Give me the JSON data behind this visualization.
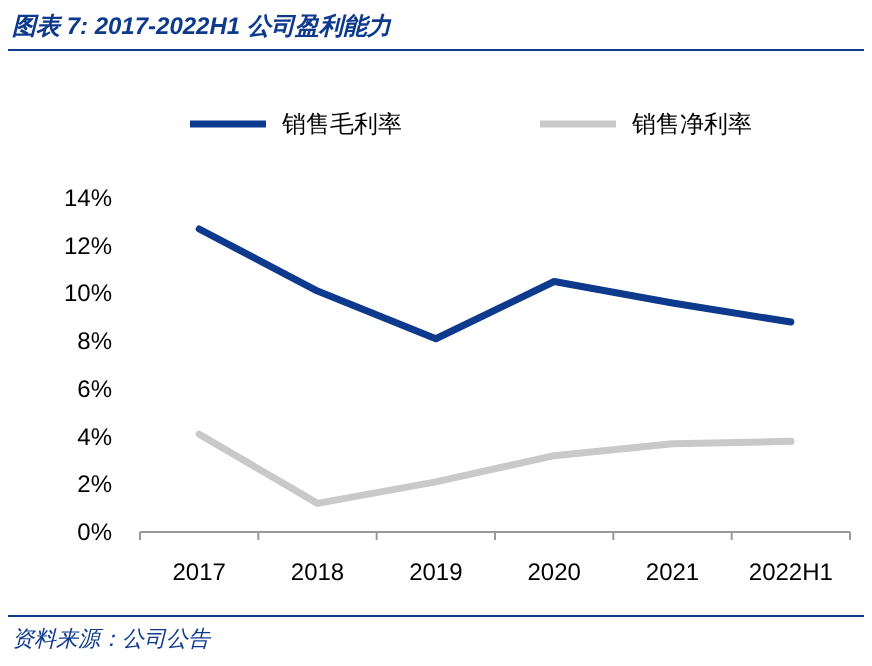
{
  "chart_data": {
    "type": "line",
    "title": "图表 7: 2017-2022H1 公司盈利能力",
    "categories": [
      "2017",
      "2018",
      "2019",
      "2020",
      "2021",
      "2022H1"
    ],
    "series": [
      {
        "name": "销售毛利率",
        "color": "#0d3a8c",
        "values": [
          12.7,
          10.1,
          8.1,
          10.5,
          9.6,
          8.8
        ]
      },
      {
        "name": "销售净利率",
        "color": "#c9c9c9",
        "values": [
          4.1,
          1.2,
          2.1,
          3.2,
          3.7,
          3.8
        ]
      }
    ],
    "ylim": [
      0,
      14
    ],
    "yticks": [
      {
        "value": 0,
        "label": "0%"
      },
      {
        "value": 2,
        "label": "2%"
      },
      {
        "value": 4,
        "label": "4%"
      },
      {
        "value": 6,
        "label": "6%"
      },
      {
        "value": 8,
        "label": "8%"
      },
      {
        "value": 10,
        "label": "10%"
      },
      {
        "value": 12,
        "label": "12%"
      },
      {
        "value": 14,
        "label": "14%"
      }
    ],
    "grid": false,
    "legend": "top",
    "marker": "none",
    "line_style": "solid",
    "annotations": [
      "资料来源：公司公告"
    ]
  }
}
